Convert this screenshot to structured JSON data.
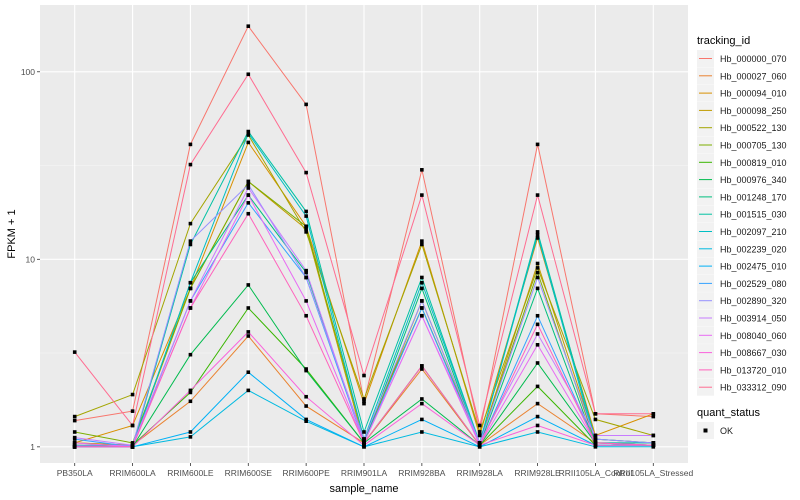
{
  "chart_data": {
    "type": "line",
    "xlabel": "sample_name",
    "ylabel": "FPKM + 1",
    "y_scale": "log10",
    "ylim": [
      0.82,
      227
    ],
    "y_ticks": [
      1,
      10,
      100
    ],
    "grid": true,
    "legend_position": "right",
    "categories": [
      "PB350LA",
      "RRIM600LA",
      "RRIM600LE",
      "RRIM600SE",
      "RRIM600PE",
      "RRIM901LA",
      "RRIM928BA",
      "RRIM928LA",
      "RRIM928LE",
      "RRII105LA_Control",
      "RRII105LA_Stressed"
    ],
    "color_legend_title": "tracking_id",
    "shape_legend_title": "quant_status",
    "shape_legend_items": [
      "OK"
    ],
    "series": [
      {
        "name": "Hb_000000_070",
        "color": "#F8766D",
        "values": [
          1.38,
          1.55,
          41,
          175,
          67,
          1.75,
          30,
          1.2,
          41,
          1.5,
          1.45
        ]
      },
      {
        "name": "Hb_000027_060",
        "color": "#EA8331",
        "values": [
          1.05,
          1.02,
          1.75,
          3.9,
          1.65,
          1.05,
          2.6,
          1.02,
          1.7,
          1.05,
          1.02
        ]
      },
      {
        "name": "Hb_000094_010",
        "color": "#D89000",
        "values": [
          1.05,
          1.3,
          7,
          42,
          15,
          1.7,
          12.5,
          1.15,
          13,
          1.15,
          1.5
        ]
      },
      {
        "name": "Hb_000098_250",
        "color": "#C09B00",
        "values": [
          1.05,
          1.02,
          7,
          26,
          14.5,
          1.05,
          6,
          1.05,
          9.5,
          1.1,
          1.05
        ]
      },
      {
        "name": "Hb_000522_130",
        "color": "#A3A500",
        "values": [
          1.45,
          1.9,
          15.5,
          46,
          14,
          1.8,
          12,
          1.2,
          9,
          1.4,
          1.15
        ]
      },
      {
        "name": "Hb_000705_130",
        "color": "#7CAE00",
        "values": [
          1.2,
          1.05,
          7,
          26,
          15,
          1.1,
          5.5,
          1.05,
          8.5,
          1.05,
          1.05
        ]
      },
      {
        "name": "Hb_000819_010",
        "color": "#39B600",
        "values": [
          1.02,
          1.02,
          1.95,
          5.5,
          2.6,
          1.05,
          2.7,
          1.02,
          2.1,
          1.02,
          1.02
        ]
      },
      {
        "name": "Hb_000976_340",
        "color": "#00BB4E",
        "values": [
          1.02,
          1.0,
          3.1,
          7.3,
          2.55,
          1.05,
          1.8,
          1.02,
          2.8,
          1.05,
          1.02
        ]
      },
      {
        "name": "Hb_001248_170",
        "color": "#00BF7D",
        "values": [
          1.0,
          1.0,
          7.5,
          22,
          8.5,
          1.05,
          7,
          1.02,
          7,
          1.02,
          1.02
        ]
      },
      {
        "name": "Hb_001515_030",
        "color": "#00C1A3",
        "values": [
          1.0,
          1.0,
          12,
          48,
          18,
          1.2,
          8,
          1.05,
          14,
          1.1,
          1.05
        ]
      },
      {
        "name": "Hb_002097_210",
        "color": "#00BFC4",
        "values": [
          1.0,
          1.0,
          7.5,
          47,
          17,
          1.1,
          7.5,
          1.05,
          13.5,
          1.05,
          1.05
        ]
      },
      {
        "name": "Hb_002239_020",
        "color": "#00BAE0",
        "values": [
          1.0,
          1.0,
          1.13,
          2.0,
          1.37,
          1.0,
          1.2,
          1.0,
          1.2,
          1.0,
          1.0
        ]
      },
      {
        "name": "Hb_002475_010",
        "color": "#00B0F6",
        "values": [
          1.0,
          1.0,
          1.2,
          2.5,
          1.4,
          1.0,
          1.4,
          1.0,
          1.45,
          1.02,
          1.02
        ]
      },
      {
        "name": "Hb_002529_080",
        "color": "#35A2FF",
        "values": [
          1.1,
          1.0,
          6,
          20,
          8,
          1.05,
          5.5,
          1.02,
          5,
          1.05,
          1.02
        ]
      },
      {
        "name": "Hb_002890_320",
        "color": "#9590FF",
        "values": [
          1.02,
          1.02,
          12.5,
          25,
          8,
          1.1,
          6,
          1.05,
          8,
          1.1,
          1.05
        ]
      },
      {
        "name": "Hb_003914_050",
        "color": "#C77CFF",
        "values": [
          1.12,
          1.02,
          6,
          24,
          8.7,
          1.05,
          5,
          1.05,
          4,
          1.15,
          1.15
        ]
      },
      {
        "name": "Hb_008040_060",
        "color": "#E76BF3",
        "values": [
          1.05,
          1.0,
          5.5,
          22,
          6,
          1.05,
          5,
          1.02,
          3.5,
          1.05,
          1.02
        ]
      },
      {
        "name": "Hb_008667_030",
        "color": "#FA62DB",
        "values": [
          1.0,
          1.0,
          2,
          4.1,
          1.85,
          1.02,
          1.7,
          1.02,
          1.3,
          1.02,
          1.02
        ]
      },
      {
        "name": "Hb_013720_010",
        "color": "#FF62BC",
        "values": [
          1.0,
          1.0,
          5.5,
          17.5,
          5,
          1.05,
          2.7,
          1.02,
          4.5,
          1.05,
          1.02
        ]
      },
      {
        "name": "Hb_033312_090",
        "color": "#FF6C91",
        "values": [
          3.2,
          1.3,
          32,
          97,
          29,
          2.4,
          22,
          1.3,
          22,
          1.5,
          1.5
        ]
      }
    ]
  }
}
